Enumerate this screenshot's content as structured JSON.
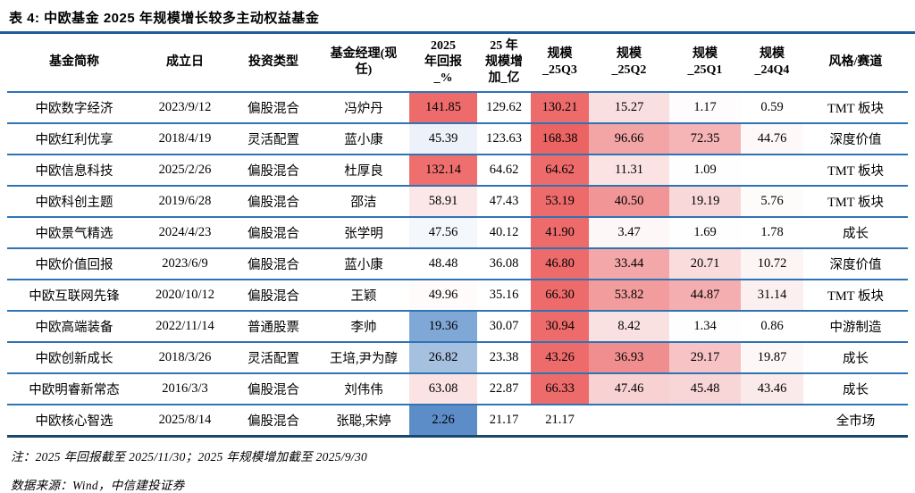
{
  "title": "表 4: 中欧基金 2025 年规模增长较多主动权益基金",
  "table": {
    "columns": [
      {
        "id": "fund-name",
        "label": "基金简称"
      },
      {
        "id": "inception-date",
        "label": "成立日"
      },
      {
        "id": "investment-type",
        "label": "投资类型"
      },
      {
        "id": "fund-manager",
        "label": "基金经理(现\n任)"
      },
      {
        "id": "return-2025",
        "label": "2025\n年回报\n_%"
      },
      {
        "id": "scale-increase-2025",
        "label": "25 年\n规模增\n加_亿"
      },
      {
        "id": "scale-25q3",
        "label": "规模\n_25Q3"
      },
      {
        "id": "scale-25q2",
        "label": "规模\n_25Q2"
      },
      {
        "id": "scale-25q1",
        "label": "规模\n_25Q1"
      },
      {
        "id": "scale-24q4",
        "label": "规模\n_24Q4"
      },
      {
        "id": "style-track",
        "label": "风格/赛道"
      }
    ],
    "rows": [
      {
        "cells": [
          "中欧数字经济",
          "2023/9/12",
          "偏股混合",
          "冯炉丹",
          "141.85",
          "129.62",
          "130.21",
          "15.27",
          "1.17",
          "0.59",
          "TMT 板块"
        ],
        "bg": [
          "",
          "",
          "",
          "",
          "#EE6B6B",
          "",
          "#EE6B6B",
          "#FADFE0",
          "#FEFCFC",
          "",
          ""
        ]
      },
      {
        "cells": [
          "中欧红利优享",
          "2018/4/19",
          "灵活配置",
          "蓝小康",
          "45.39",
          "123.63",
          "168.38",
          "96.66",
          "72.35",
          "44.76",
          "深度价值"
        ],
        "bg": [
          "",
          "",
          "",
          "",
          "#EDF2FA",
          "",
          "#EC6363",
          "#F3A5A6",
          "#F5B4B5",
          "#FEF8F8",
          ""
        ]
      },
      {
        "cells": [
          "中欧信息科技",
          "2025/2/26",
          "偏股混合",
          "杜厚良",
          "132.14",
          "64.62",
          "64.62",
          "11.31",
          "1.09",
          "",
          "TMT 板块"
        ],
        "bg": [
          "",
          "",
          "",
          "",
          "#EF6F6F",
          "",
          "#EE6B6B",
          "#FBE3E3",
          "#FFFEFE",
          "",
          ""
        ]
      },
      {
        "cells": [
          "中欧科创主题",
          "2019/6/28",
          "偏股混合",
          "邵洁",
          "58.91",
          "47.43",
          "53.19",
          "40.50",
          "19.19",
          "5.76",
          "TMT 板块"
        ],
        "bg": [
          "",
          "",
          "",
          "",
          "#FBE7E8",
          "",
          "#EE6B6B",
          "#F19596",
          "#F9D8D9",
          "#FEFBFB",
          ""
        ]
      },
      {
        "cells": [
          "中欧景气精选",
          "2024/4/23",
          "偏股混合",
          "张学明",
          "47.56",
          "40.12",
          "41.90",
          "3.47",
          "1.69",
          "1.78",
          "成长"
        ],
        "bg": [
          "",
          "",
          "",
          "",
          "#F4F7FB",
          "",
          "#EE6B6B",
          "#FEF7F7",
          "#FFFEFE",
          "",
          ""
        ]
      },
      {
        "cells": [
          "中欧价值回报",
          "2023/6/9",
          "偏股混合",
          "蓝小康",
          "48.48",
          "36.08",
          "46.80",
          "33.44",
          "20.71",
          "10.72",
          "深度价值"
        ],
        "bg": [
          "",
          "",
          "",
          "",
          "",
          "",
          "#EE6B6B",
          "#F4A7A8",
          "#FADCDD",
          "#FDF4F4",
          ""
        ]
      },
      {
        "cells": [
          "中欧互联网先锋",
          "2020/10/12",
          "偏股混合",
          "王颖",
          "49.96",
          "35.16",
          "66.30",
          "53.82",
          "44.87",
          "31.14",
          "TMT 板块"
        ],
        "bg": [
          "",
          "",
          "",
          "",
          "#FFFBFB",
          "",
          "#EE6B6B",
          "#F29C9D",
          "#F5AEAF",
          "#FCEFEF",
          ""
        ]
      },
      {
        "cells": [
          "中欧高端装备",
          "2022/11/14",
          "普通股票",
          "李帅",
          "19.36",
          "30.07",
          "30.94",
          "8.42",
          "1.34",
          "0.86",
          "中游制造"
        ],
        "bg": [
          "",
          "",
          "",
          "",
          "#80A8D7",
          "",
          "#EE6B6B",
          "#FAE1E1",
          "#FFFEFE",
          "",
          ""
        ]
      },
      {
        "cells": [
          "中欧创新成长",
          "2018/3/26",
          "灵活配置",
          "王培,尹为醇",
          "26.82",
          "23.38",
          "43.26",
          "36.93",
          "29.17",
          "19.87",
          "成长"
        ],
        "bg": [
          "",
          "",
          "",
          "",
          "#A6C0E0",
          "",
          "#EE6B6B",
          "#F08E8F",
          "#F7C3C4",
          "#FEF7F7",
          ""
        ]
      },
      {
        "cells": [
          "中欧明睿新常态",
          "2016/3/3",
          "偏股混合",
          "刘伟伟",
          "63.08",
          "22.87",
          "66.33",
          "47.46",
          "45.48",
          "43.46",
          "成长"
        ],
        "bg": [
          "",
          "",
          "",
          "",
          "#FBE2E3",
          "",
          "#EE6B6B",
          "#F8D2D3",
          "#F8D5D6",
          "#FBEAEA",
          ""
        ]
      },
      {
        "cells": [
          "中欧核心智选",
          "2025/8/14",
          "偏股混合",
          "张聪,宋婷",
          "2.26",
          "21.17",
          "21.17",
          "",
          "",
          "",
          "全市场"
        ],
        "bg": [
          "",
          "",
          "",
          "",
          "#5C8DC9",
          "",
          "",
          "",
          "",
          "",
          ""
        ]
      }
    ]
  },
  "notes": {
    "note": "注：2025 年回报截至 2025/11/30；2025 年规模增加截至 2025/9/30",
    "source": "数据来源：Wind，中信建投证券"
  },
  "colors": {
    "title_rule": "#1F5C99",
    "row_divider": "#2E74B5",
    "bottom_rule": "#17486F",
    "heat_red_max": "#EE6B6B",
    "heat_blue_min": "#5C8DC9"
  }
}
